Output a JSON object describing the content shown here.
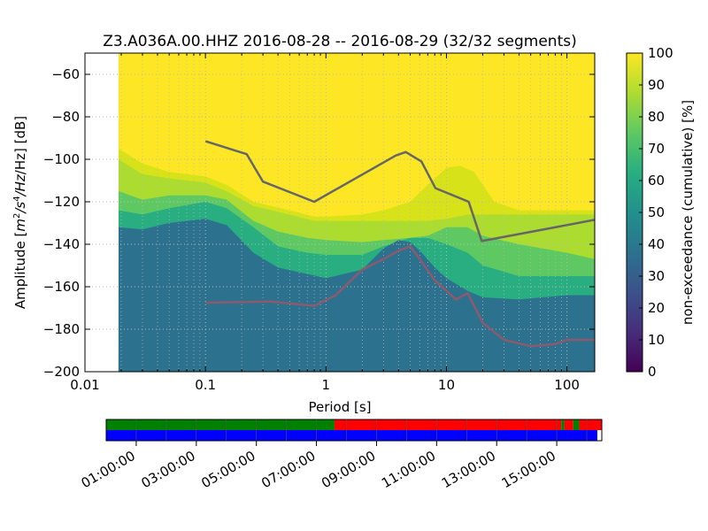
{
  "chart_data": {
    "type": "heatmap",
    "title": "Z3.A036A.00.HHZ   2016-08-28 -- 2016-08-29  (32/32 segments)",
    "xlabel": "Period [s]",
    "ylabel_prefix": "Amplitude [",
    "ylabel_base": "m",
    "ylabel_sup1": "2",
    "ylabel_mid": "/s",
    "ylabel_sup2": "4",
    "ylabel_suffix": "/Hz] [dB]",
    "x_scale": "log",
    "xlim": [
      0.01,
      170
    ],
    "ylim": [
      -200,
      -50
    ],
    "x_ticks": [
      0.01,
      0.1,
      1,
      10,
      100
    ],
    "x_tick_labels": [
      "0.01",
      "0.1",
      "1",
      "10",
      "100"
    ],
    "y_ticks": [
      -200,
      -180,
      -160,
      -140,
      -120,
      -100,
      -80,
      -60
    ],
    "y_tick_labels": [
      "−200",
      "−180",
      "−160",
      "−140",
      "−120",
      "−100",
      "−80",
      "−60"
    ],
    "grid": true,
    "data_min_period": 0.019,
    "colorbar": {
      "label": "non-exceedance (cumulative) [%]",
      "range": [
        0,
        100
      ],
      "ticks": [
        0,
        10,
        20,
        30,
        40,
        50,
        60,
        70,
        80,
        90,
        100
      ],
      "tick_labels": [
        "0",
        "10",
        "20",
        "30",
        "40",
        "50",
        "60",
        "70",
        "80",
        "90",
        "100"
      ],
      "colors": [
        "#440154",
        "#472d7b",
        "#3b528b",
        "#2c728e",
        "#21918c",
        "#28ae80",
        "#5ec962",
        "#addc30",
        "#fde725"
      ]
    },
    "heatmap": {
      "base_color": "#2c728e",
      "bands": [
        {
          "level": 50,
          "color": "#21918c",
          "upper": [
            [
              0.019,
              -132
            ],
            [
              0.03,
              -133
            ],
            [
              0.05,
              -130
            ],
            [
              0.1,
              -128
            ],
            [
              0.15,
              -131
            ],
            [
              0.25,
              -144
            ],
            [
              0.4,
              -151
            ],
            [
              0.7,
              -154
            ],
            [
              1,
              -156
            ],
            [
              2,
              -152
            ],
            [
              3,
              -142
            ],
            [
              4,
              -138
            ],
            [
              5,
              -139
            ],
            [
              6,
              -143
            ],
            [
              8,
              -151
            ],
            [
              10,
              -156
            ],
            [
              15,
              -162
            ],
            [
              20,
              -165
            ],
            [
              40,
              -166
            ],
            [
              100,
              -164
            ],
            [
              170,
              -164
            ]
          ]
        },
        {
          "level": 60,
          "color": "#28ae80",
          "upper": [
            [
              0.019,
              -124
            ],
            [
              0.03,
              -126
            ],
            [
              0.05,
              -123
            ],
            [
              0.1,
              -120
            ],
            [
              0.15,
              -123
            ],
            [
              0.25,
              -132
            ],
            [
              0.4,
              -141
            ],
            [
              0.7,
              -144
            ],
            [
              1,
              -145
            ],
            [
              2,
              -145
            ],
            [
              3,
              -141
            ],
            [
              5,
              -137
            ],
            [
              7,
              -137
            ],
            [
              10,
              -140
            ],
            [
              15,
              -144
            ],
            [
              20,
              -150
            ],
            [
              40,
              -155
            ],
            [
              100,
              -155
            ],
            [
              170,
              -155
            ]
          ]
        },
        {
          "level": 70,
          "color": "#5ec962",
          "upper": [
            [
              0.019,
              -115
            ],
            [
              0.03,
              -119
            ],
            [
              0.05,
              -117
            ],
            [
              0.1,
              -117
            ],
            [
              0.15,
              -119
            ],
            [
              0.25,
              -129
            ],
            [
              0.4,
              -134
            ],
            [
              0.7,
              -137
            ],
            [
              1,
              -138
            ],
            [
              2,
              -139
            ],
            [
              3,
              -138
            ],
            [
              5,
              -137
            ],
            [
              7,
              -136
            ],
            [
              10,
              -132
            ],
            [
              15,
              -132
            ],
            [
              20,
              -136
            ],
            [
              40,
              -140
            ],
            [
              100,
              -144
            ],
            [
              170,
              -147
            ]
          ]
        },
        {
          "level": 80,
          "color": "#addc30",
          "upper": [
            [
              0.019,
              -100
            ],
            [
              0.03,
              -107
            ],
            [
              0.05,
              -109
            ],
            [
              0.1,
              -111
            ],
            [
              0.15,
              -115
            ],
            [
              0.25,
              -122
            ],
            [
              0.5,
              -126
            ],
            [
              0.8,
              -129
            ],
            [
              1,
              -129
            ],
            [
              2,
              -129
            ],
            [
              3,
              -129
            ],
            [
              5,
              -129
            ],
            [
              7,
              -129
            ],
            [
              10,
              -128
            ],
            [
              15,
              -126
            ],
            [
              20,
              -126
            ],
            [
              40,
              -126
            ],
            [
              100,
              -126
            ],
            [
              170,
              -126
            ]
          ]
        },
        {
          "level": 90,
          "color": "#d8e219",
          "upper": [
            [
              0.019,
              -95
            ],
            [
              0.03,
              -102
            ],
            [
              0.05,
              -106
            ],
            [
              0.1,
              -108
            ],
            [
              0.15,
              -112
            ],
            [
              0.25,
              -120
            ],
            [
              0.5,
              -124
            ],
            [
              0.8,
              -127
            ],
            [
              1,
              -127
            ],
            [
              2,
              -126
            ],
            [
              3,
              -124
            ],
            [
              5,
              -120
            ],
            [
              7,
              -112
            ],
            [
              10,
              -104
            ],
            [
              13,
              -103
            ],
            [
              17,
              -106
            ],
            [
              20,
              -112
            ],
            [
              25,
              -120
            ],
            [
              40,
              -124
            ],
            [
              100,
              -124
            ],
            [
              170,
              -124
            ]
          ]
        }
      ]
    },
    "series": [
      {
        "x": [
          0.1,
          0.22,
          0.3,
          0.8,
          3.8,
          4.6,
          6.2,
          8.1,
          15.3,
          19.6,
          170
        ],
        "y": [
          -91.5,
          -97.6,
          -110.5,
          -120,
          -98.2,
          -96.6,
          -101,
          -113.6,
          -120,
          -138.5,
          -128.5
        ],
        "color": "#666666"
      },
      {
        "x": [
          0.1,
          0.35,
          0.8,
          1.2,
          2,
          3,
          4,
          5,
          6,
          8,
          12,
          15,
          20,
          30,
          50,
          80,
          100,
          170
        ],
        "y": [
          -167.5,
          -167,
          -169,
          -164,
          -152,
          -147,
          -143,
          -141,
          -147,
          -157,
          -166,
          -163,
          -177,
          -185,
          -188,
          -187,
          -185,
          -185
        ],
        "color": "#8b5a6e"
      }
    ]
  },
  "timeline": {
    "tick_labels": [
      "01:00:00",
      "03:00:00",
      "05:00:00",
      "07:00:00",
      "09:00:00",
      "11:00:00",
      "13:00:00",
      "15:00:00"
    ],
    "tick_hours": [
      1,
      3,
      5,
      7,
      9,
      11,
      13,
      15
    ],
    "hour_min": 0,
    "hour_max": 16.5,
    "top_row": [
      {
        "from": 0,
        "to": 7.6,
        "color": "#008000"
      },
      {
        "from": 7.6,
        "to": 15.15,
        "color": "#ff0000"
      },
      {
        "from": 15.15,
        "to": 15.25,
        "color": "#008000"
      },
      {
        "from": 15.25,
        "to": 15.55,
        "color": "#ff0000"
      },
      {
        "from": 15.55,
        "to": 15.75,
        "color": "#008000"
      },
      {
        "from": 15.75,
        "to": 16.5,
        "color": "#ff0000"
      }
    ],
    "bottom_row": [
      {
        "from": 0,
        "to": 16.35,
        "color": "#0000ff"
      }
    ]
  }
}
